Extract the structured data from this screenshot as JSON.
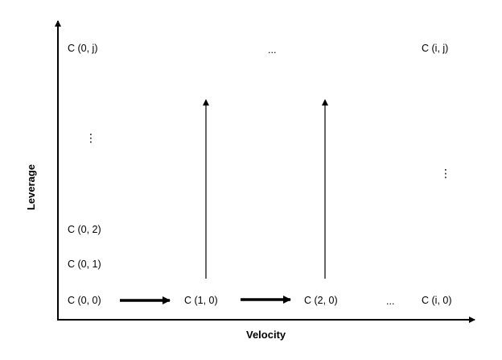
{
  "axes": {
    "x_label": "Velocity",
    "y_label": "Leverage"
  },
  "cells": {
    "c00": "C (0, 0)",
    "c01": "C (0, 1)",
    "c02": "C (0, 2)",
    "c0j": "C (0, j)",
    "c10": "C (1, 0)",
    "c20": "C (2, 0)",
    "ci0": "C (i, 0)",
    "cij": "C (i, j)"
  },
  "ellipses": {
    "top_row": "...",
    "bottom_row": "...",
    "left_column": "⋮",
    "right_column": "⋮"
  }
}
